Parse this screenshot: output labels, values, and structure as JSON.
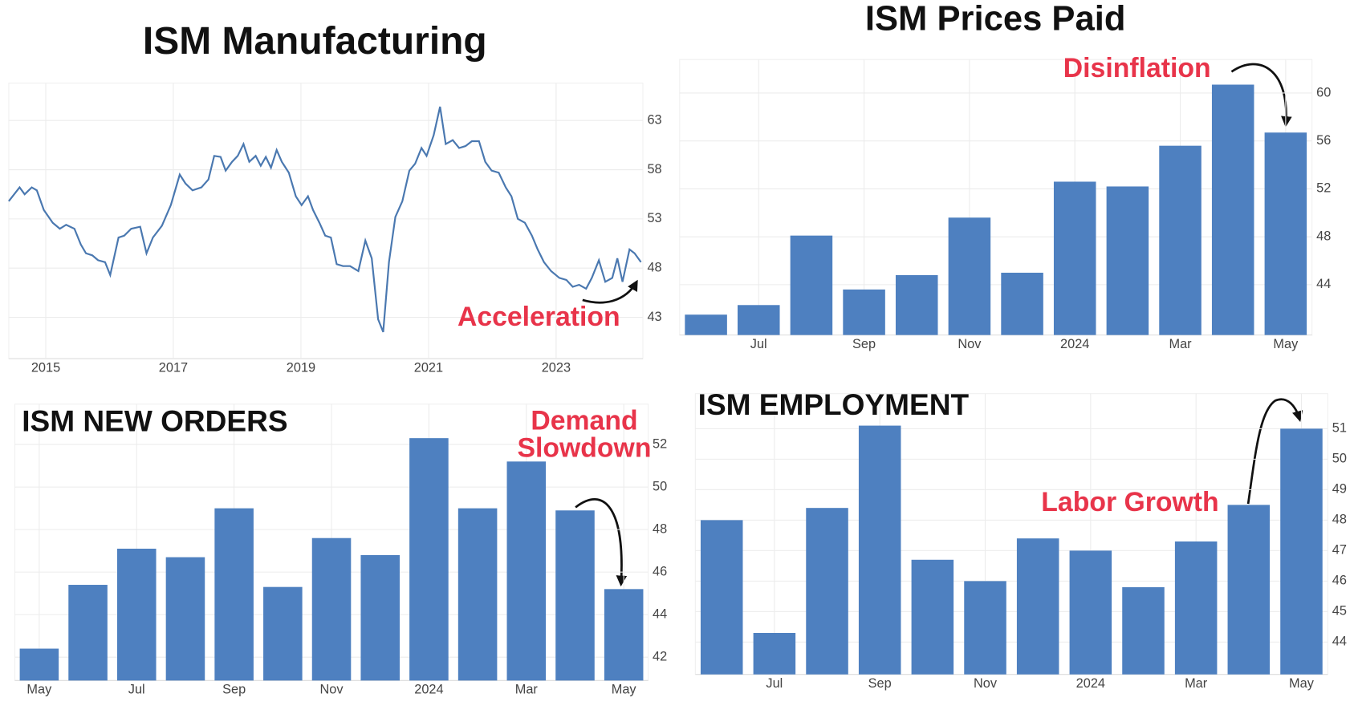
{
  "chart_data": [
    {
      "type": "line",
      "title": "ISM Manufacturing",
      "annotation": [
        "Acceleration"
      ],
      "color": "#4a78b0",
      "x": [
        2014.42,
        2014.59,
        2014.67,
        2014.78,
        2014.86,
        2014.97,
        2015.11,
        2015.22,
        2015.32,
        2015.45,
        2015.55,
        2015.63,
        2015.73,
        2015.82,
        2015.93,
        2016.01,
        2016.14,
        2016.23,
        2016.34,
        2016.48,
        2016.58,
        2016.68,
        2016.82,
        2016.96,
        2017.1,
        2017.19,
        2017.3,
        2017.44,
        2017.55,
        2017.64,
        2017.74,
        2017.82,
        2017.92,
        2018.01,
        2018.1,
        2018.19,
        2018.29,
        2018.37,
        2018.45,
        2018.53,
        2018.62,
        2018.7,
        2018.81,
        2018.92,
        2019.01,
        2019.11,
        2019.19,
        2019.29,
        2019.38,
        2019.47,
        2019.56,
        2019.66,
        2019.77,
        2019.9,
        2020.01,
        2020.11,
        2020.21,
        2020.29,
        2020.38,
        2020.48,
        2020.59,
        2020.7,
        2020.79,
        2020.89,
        2020.97,
        2021.08,
        2021.18,
        2021.27,
        2021.38,
        2021.48,
        2021.58,
        2021.68,
        2021.79,
        2021.89,
        2021.99,
        2022.1,
        2022.21,
        2022.3,
        2022.4,
        2022.51,
        2022.62,
        2022.71,
        2022.81,
        2022.92,
        2023.05,
        2023.16,
        2023.26,
        2023.36,
        2023.47,
        2023.56,
        2023.67,
        2023.77,
        2023.88,
        2023.96,
        2024.04,
        2024.15,
        2024.23,
        2024.33
      ],
      "values": [
        54.8,
        56.2,
        55.5,
        56.2,
        55.9,
        53.9,
        52.6,
        52.0,
        52.4,
        52.0,
        50.4,
        49.5,
        49.3,
        48.8,
        48.6,
        47.3,
        51.1,
        51.3,
        52.0,
        52.2,
        49.5,
        51.1,
        52.3,
        54.4,
        57.5,
        56.6,
        55.9,
        56.2,
        57.0,
        59.4,
        59.3,
        57.9,
        58.8,
        59.4,
        60.6,
        58.8,
        59.4,
        58.4,
        59.3,
        58.2,
        60.0,
        58.8,
        57.7,
        55.3,
        54.4,
        55.3,
        53.9,
        52.6,
        51.3,
        51.1,
        48.4,
        48.2,
        48.2,
        47.7,
        50.8,
        49.0,
        42.8,
        41.5,
        48.6,
        53.2,
        54.8,
        57.9,
        58.6,
        60.2,
        59.4,
        61.5,
        64.4,
        60.6,
        61.0,
        60.2,
        60.4,
        60.9,
        60.9,
        58.8,
        57.9,
        57.7,
        56.2,
        55.3,
        53.0,
        52.6,
        51.3,
        49.9,
        48.6,
        47.7,
        47.0,
        46.8,
        46.1,
        46.3,
        45.9,
        47.0,
        48.8,
        46.6,
        47.0,
        49.0,
        46.6,
        49.9,
        49.5,
        48.6
      ],
      "xlim": [
        2014.42,
        2024.36
      ],
      "xticks": [
        2015,
        2017,
        2019,
        2021,
        2023
      ],
      "ylim": [
        38.8,
        66.8
      ],
      "yticks": [
        43,
        48,
        53,
        58,
        63
      ],
      "grid": true
    },
    {
      "type": "bar",
      "title": "ISM Prices Paid",
      "annotation": [
        "Disinflation"
      ],
      "color": "#4e80c0",
      "categories": [
        null,
        "Jul",
        null,
        "Sep",
        null,
        "Nov",
        null,
        "2024",
        null,
        "Mar",
        null,
        "May"
      ],
      "values": [
        41.5,
        42.3,
        48.1,
        43.6,
        44.8,
        49.6,
        45.0,
        52.6,
        52.2,
        55.6,
        60.7,
        56.7
      ],
      "ylim": [
        39.8,
        62.8
      ],
      "yticks": [
        44,
        48,
        52,
        56,
        60
      ],
      "grid": true
    },
    {
      "type": "bar",
      "title": "ISM NEW ORDERS",
      "annotation": [
        "Demand",
        "Slowdown"
      ],
      "color": "#4e80c0",
      "categories": [
        "May",
        null,
        "Jul",
        null,
        "Sep",
        null,
        "Nov",
        null,
        "2024",
        null,
        "Mar",
        null,
        "May"
      ],
      "values": [
        42.4,
        45.4,
        47.1,
        46.7,
        49.0,
        45.3,
        47.6,
        46.8,
        52.3,
        49.0,
        51.2,
        48.9,
        45.2
      ],
      "ylim": [
        40.9,
        53.9
      ],
      "yticks": [
        42,
        44,
        46,
        48,
        50,
        52
      ],
      "grid": true
    },
    {
      "type": "bar",
      "title": "ISM EMPLOYMENT",
      "annotation": [
        "Labor Growth"
      ],
      "color": "#4e80c0",
      "categories": [
        null,
        "Jul",
        null,
        "Sep",
        null,
        "Nov",
        null,
        "2024",
        null,
        "Mar",
        null,
        "May"
      ],
      "values": [
        48.0,
        44.3,
        48.4,
        51.1,
        46.7,
        46.0,
        47.4,
        47.0,
        45.8,
        47.3,
        48.5,
        51.0
      ],
      "ylim": [
        42.94,
        52.15
      ],
      "yticks": [
        44,
        45,
        46,
        47,
        48,
        49,
        50,
        51
      ],
      "grid": true
    }
  ]
}
